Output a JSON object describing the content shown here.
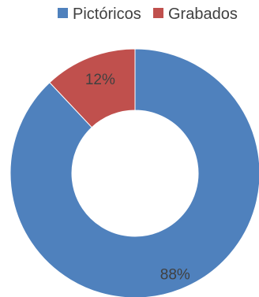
{
  "chart_data": {
    "type": "pie",
    "donut": true,
    "legend_position": "top",
    "categories": [
      "Pictóricos",
      "Grabados"
    ],
    "values": [
      88,
      12
    ],
    "data_labels": [
      "88%",
      "12%"
    ],
    "colors": [
      "#4F81BD",
      "#C0504D"
    ],
    "title": ""
  }
}
